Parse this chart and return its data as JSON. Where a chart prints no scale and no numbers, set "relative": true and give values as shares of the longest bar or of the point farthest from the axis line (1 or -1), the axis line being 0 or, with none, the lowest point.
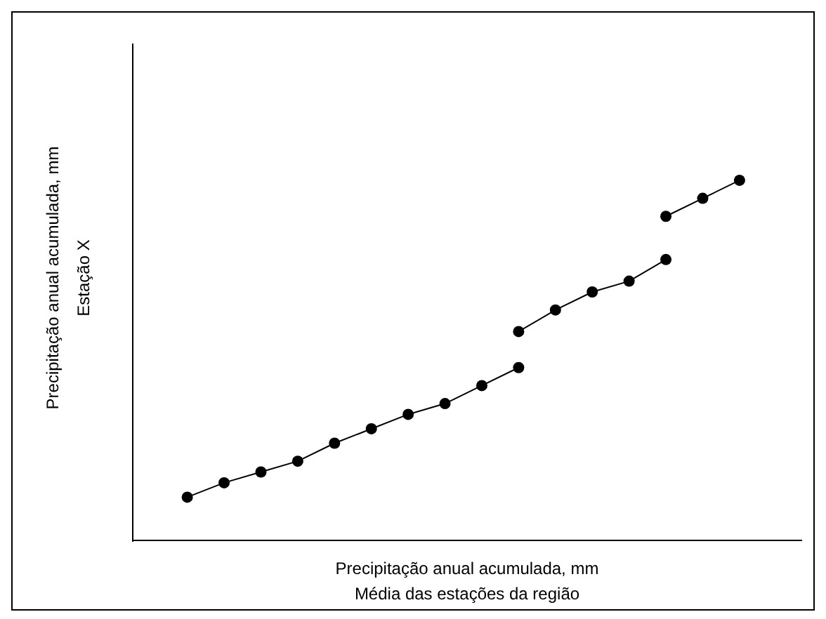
{
  "chart_data": {
    "type": "line",
    "relative": true,
    "marker": "circle",
    "line_style": "solid",
    "xlabel": "Precipitação anual acumulada, mm\nMédia das estações da região",
    "ylabel": "Precipitação anual acumulada, mm\nEstação X",
    "categories": [
      null,
      null,
      null,
      null,
      null,
      null,
      null,
      null,
      null,
      null,
      null,
      null,
      null,
      null,
      null,
      null
    ],
    "series": [
      {
        "color": "#000000",
        "values": [
          0.12,
          0.16,
          0.19,
          0.22,
          0.27,
          0.31,
          0.35,
          0.38,
          0.43,
          0.48,
          null,
          null,
          null,
          null,
          null,
          null
        ]
      },
      {
        "color": "#000000",
        "values": [
          null,
          null,
          null,
          null,
          null,
          null,
          null,
          null,
          null,
          0.58,
          0.64,
          0.69,
          0.72,
          0.78,
          null,
          null
        ]
      },
      {
        "color": "#000000",
        "values": [
          null,
          null,
          null,
          null,
          null,
          null,
          null,
          null,
          null,
          null,
          null,
          null,
          null,
          0.9,
          0.95,
          1
        ]
      }
    ]
  }
}
